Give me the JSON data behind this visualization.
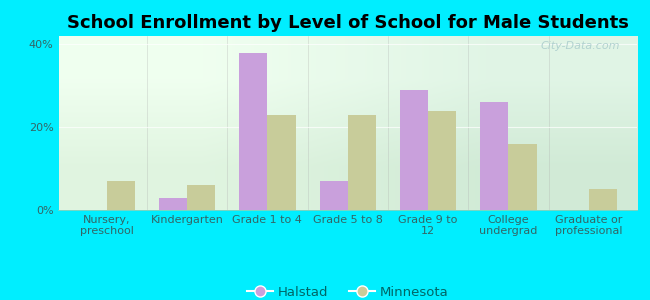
{
  "title": "School Enrollment by Level of School for Male Students",
  "categories": [
    "Nursery,\npreschool",
    "Kindergarten",
    "Grade 1 to 4",
    "Grade 5 to 8",
    "Grade 9 to\n12",
    "College\nundergrad",
    "Graduate or\nprofessional"
  ],
  "halstad": [
    0,
    3,
    38,
    7,
    29,
    26,
    0
  ],
  "minnesota": [
    7,
    6,
    23,
    23,
    24,
    16,
    5
  ],
  "halstad_color": "#c9a0dc",
  "minnesota_color": "#c8cc9a",
  "background_color": "#00eeff",
  "ylim": [
    0,
    42
  ],
  "yticks": [
    0,
    20,
    40
  ],
  "ytick_labels": [
    "0%",
    "20%",
    "40%"
  ],
  "bar_width": 0.35,
  "legend_labels": [
    "Halstad",
    "Minnesota"
  ],
  "title_fontsize": 13,
  "tick_fontsize": 8,
  "legend_fontsize": 9.5,
  "watermark": "City-Data.com"
}
